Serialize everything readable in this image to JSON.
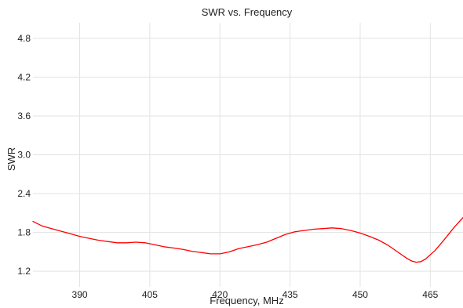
{
  "chart_data": {
    "type": "line",
    "title": "SWR vs. Frequency",
    "xlabel": "Frequency, MHz",
    "ylabel": "SWR",
    "xlim": [
      380,
      472
    ],
    "ylim": [
      0.96,
      5.04
    ],
    "x_ticks": [
      390,
      405,
      420,
      435,
      450,
      465
    ],
    "y_ticks": [
      1.2,
      1.8,
      2.4,
      3.0,
      3.6,
      4.2,
      4.8
    ],
    "x_tick_labels": [
      "390",
      "405",
      "420",
      "435",
      "450",
      "465"
    ],
    "y_tick_labels": [
      "1.2",
      "1.8",
      "2.4",
      "3.0",
      "3.6",
      "4.2",
      "4.8"
    ],
    "grid": true,
    "legend": "none",
    "colors": {
      "series": "#ff0000",
      "grid": "#e3e3e3",
      "text": "#222222"
    },
    "series": [
      {
        "x": [
          380,
          382,
          384,
          386,
          388,
          390,
          392,
          394,
          396,
          398,
          400,
          402,
          404,
          406,
          408,
          410,
          412,
          414,
          416,
          418,
          420,
          422,
          424,
          426,
          428,
          430,
          432,
          434,
          436,
          438,
          440,
          442,
          444,
          446,
          448,
          450,
          452,
          454,
          456,
          458,
          460,
          461,
          462,
          463,
          464,
          466,
          468,
          470,
          472
        ],
        "y": [
          1.97,
          1.9,
          1.86,
          1.82,
          1.78,
          1.74,
          1.71,
          1.68,
          1.66,
          1.64,
          1.64,
          1.65,
          1.64,
          1.61,
          1.58,
          1.56,
          1.54,
          1.51,
          1.49,
          1.47,
          1.47,
          1.5,
          1.55,
          1.58,
          1.61,
          1.65,
          1.71,
          1.77,
          1.81,
          1.83,
          1.85,
          1.86,
          1.87,
          1.86,
          1.83,
          1.79,
          1.74,
          1.68,
          1.6,
          1.5,
          1.4,
          1.36,
          1.34,
          1.35,
          1.39,
          1.52,
          1.69,
          1.87,
          2.03
        ]
      }
    ]
  }
}
